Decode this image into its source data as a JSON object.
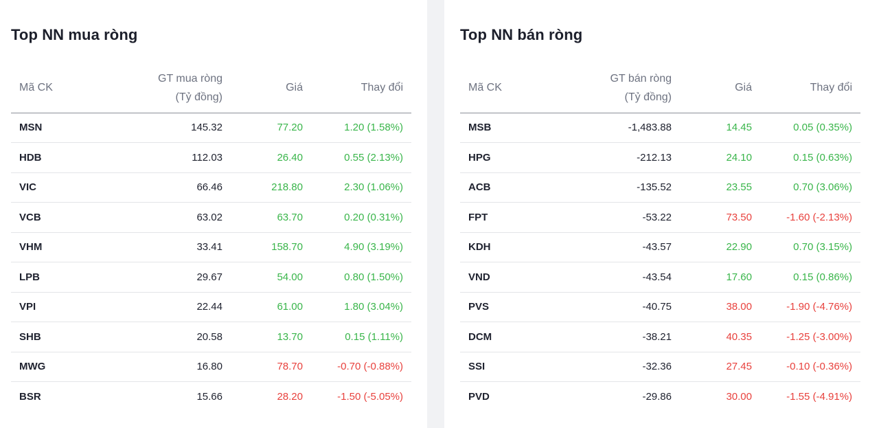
{
  "colors": {
    "up": "#39b54a",
    "down": "#e8413d"
  },
  "buy": {
    "title": "Top NN mua ròng",
    "headers": {
      "code": "Mã CK",
      "value_l1": "GT mua ròng",
      "value_l2": "(Tỷ đồng)",
      "price": "Giá",
      "change": "Thay đổi"
    },
    "rows": [
      {
        "code": "MSN",
        "value": "145.32",
        "price": "77.20",
        "change": "1.20 (1.58%)",
        "dir": "up"
      },
      {
        "code": "HDB",
        "value": "112.03",
        "price": "26.40",
        "change": "0.55 (2.13%)",
        "dir": "up"
      },
      {
        "code": "VIC",
        "value": "66.46",
        "price": "218.80",
        "change": "2.30 (1.06%)",
        "dir": "up"
      },
      {
        "code": "VCB",
        "value": "63.02",
        "price": "63.70",
        "change": "0.20 (0.31%)",
        "dir": "up"
      },
      {
        "code": "VHM",
        "value": "33.41",
        "price": "158.70",
        "change": "4.90 (3.19%)",
        "dir": "up"
      },
      {
        "code": "LPB",
        "value": "29.67",
        "price": "54.00",
        "change": "0.80 (1.50%)",
        "dir": "up"
      },
      {
        "code": "VPI",
        "value": "22.44",
        "price": "61.00",
        "change": "1.80 (3.04%)",
        "dir": "up"
      },
      {
        "code": "SHB",
        "value": "20.58",
        "price": "13.70",
        "change": "0.15 (1.11%)",
        "dir": "up"
      },
      {
        "code": "MWG",
        "value": "16.80",
        "price": "78.70",
        "change": "-0.70 (-0.88%)",
        "dir": "down"
      },
      {
        "code": "BSR",
        "value": "15.66",
        "price": "28.20",
        "change": "-1.50 (-5.05%)",
        "dir": "down"
      }
    ]
  },
  "sell": {
    "title": "Top NN bán ròng",
    "headers": {
      "code": "Mã CK",
      "value_l1": "GT bán ròng",
      "value_l2": "(Tỷ đồng)",
      "price": "Giá",
      "change": "Thay đổi"
    },
    "rows": [
      {
        "code": "MSB",
        "value": "-1,483.88",
        "price": "14.45",
        "change": "0.05 (0.35%)",
        "dir": "up"
      },
      {
        "code": "HPG",
        "value": "-212.13",
        "price": "24.10",
        "change": "0.15 (0.63%)",
        "dir": "up"
      },
      {
        "code": "ACB",
        "value": "-135.52",
        "price": "23.55",
        "change": "0.70 (3.06%)",
        "dir": "up"
      },
      {
        "code": "FPT",
        "value": "-53.22",
        "price": "73.50",
        "change": "-1.60 (-2.13%)",
        "dir": "down"
      },
      {
        "code": "KDH",
        "value": "-43.57",
        "price": "22.90",
        "change": "0.70 (3.15%)",
        "dir": "up"
      },
      {
        "code": "VND",
        "value": "-43.54",
        "price": "17.60",
        "change": "0.15 (0.86%)",
        "dir": "up"
      },
      {
        "code": "PVS",
        "value": "-40.75",
        "price": "38.00",
        "change": "-1.90 (-4.76%)",
        "dir": "down"
      },
      {
        "code": "DCM",
        "value": "-38.21",
        "price": "40.35",
        "change": "-1.25 (-3.00%)",
        "dir": "down"
      },
      {
        "code": "SSI",
        "value": "-32.36",
        "price": "27.45",
        "change": "-0.10 (-0.36%)",
        "dir": "down"
      },
      {
        "code": "PVD",
        "value": "-29.86",
        "price": "30.00",
        "change": "-1.55 (-4.91%)",
        "dir": "down"
      }
    ]
  }
}
